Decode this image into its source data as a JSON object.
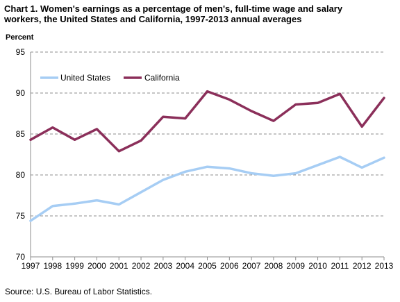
{
  "chart_data": {
    "type": "line",
    "title_line1": "Chart 1. Women's earnings as a percentage of men's, full-time wage and salary",
    "title_line2": "workers, the United States and California, 1997-2013  annual averages",
    "ylabel": "Percent",
    "xlabel": "",
    "x": [
      "1997",
      "1998",
      "1999",
      "2000",
      "2001",
      "2002",
      "2003",
      "2004",
      "2005",
      "2006",
      "2007",
      "2008",
      "2009",
      "2010",
      "2011",
      "2012",
      "2013"
    ],
    "ylim": [
      70,
      95
    ],
    "yticks": [
      70,
      75,
      80,
      85,
      90,
      95
    ],
    "grid": "horizontal dashed",
    "legend_placement": "top-left",
    "series": [
      {
        "name": "United States",
        "color": "#a6cdf4",
        "values": [
          74.4,
          76.2,
          76.5,
          76.9,
          76.4,
          77.9,
          79.4,
          80.4,
          81.0,
          80.8,
          80.2,
          79.9,
          80.2,
          81.2,
          82.2,
          80.9,
          82.1
        ]
      },
      {
        "name": "California",
        "color": "#8b2f5a",
        "values": [
          84.3,
          85.8,
          84.3,
          85.6,
          82.9,
          84.2,
          87.1,
          86.9,
          90.2,
          89.2,
          87.8,
          86.6,
          88.6,
          88.8,
          89.9,
          85.9,
          89.4
        ]
      }
    ],
    "source": "Source: U.S.  Bureau of Labor Statistics."
  }
}
